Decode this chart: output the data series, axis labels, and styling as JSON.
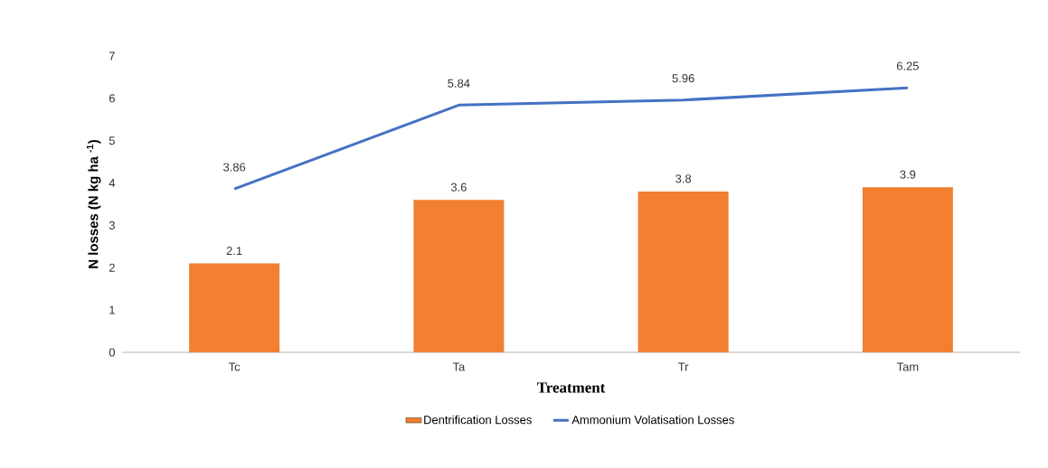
{
  "chart_data": {
    "type": "bar",
    "xlabel": "Treatment",
    "ylabel": "N losses (N kg ha $^{-1}$)",
    "categories": [
      "Tc",
      "Ta",
      "Tr",
      "Tam"
    ],
    "series": [
      {
        "name": "Dentrification Losses",
        "color": "#f28030",
        "values": [
          2.1,
          3.6,
          3.8,
          3.9
        ]
      },
      {
        "name": "Ammonium Volatisation Losses",
        "type": "line",
        "color": "#4472c4",
        "values": [
          3.86,
          5.84,
          5.96,
          6.25
        ]
      }
    ],
    "ylim": [
      0,
      7
    ],
    "yticks": [
      0,
      1,
      2,
      3,
      4,
      5,
      6,
      7
    ],
    "data_labels": true,
    "legend": "bottom",
    "grid": false
  }
}
